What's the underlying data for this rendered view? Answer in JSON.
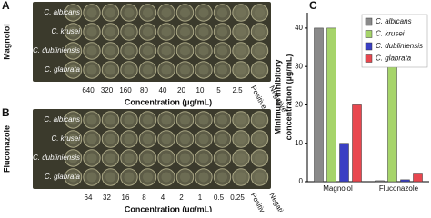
{
  "panels": [
    {
      "label": "A",
      "drug": "Magnolol",
      "strains": [
        "C. albicans",
        "C. krusei",
        "C. dubliniensis",
        "C. glabrata"
      ],
      "concentrations": [
        640,
        320,
        160,
        80,
        40,
        20,
        10,
        5,
        2.5
      ],
      "controls": [
        "Positive",
        "Negative"
      ],
      "axis_label": "Concentration (µg/mL)"
    },
    {
      "label": "B",
      "drug": "Fluconazole",
      "strains": [
        "C. albicans",
        "C. krusei",
        "C. dubliniensis",
        "C. glabrata"
      ],
      "concentrations": [
        64,
        32,
        16,
        8,
        4,
        2,
        1,
        0.5,
        0.25
      ],
      "controls": [
        "Positive",
        "Negative"
      ],
      "axis_label": "Concentration (µg/mL)"
    }
  ],
  "chart_data": {
    "type": "bar",
    "panel_label": "C",
    "ylabel": [
      "Minimum inhibitory",
      "concentration (µg/mL)"
    ],
    "categories": [
      "Magnolol",
      "Fluconazole"
    ],
    "series": [
      {
        "name": "C. albicans",
        "color": "#8a8a8a",
        "values": [
          40,
          0.25
        ]
      },
      {
        "name": "C. krusei",
        "color": "#a6d46a",
        "values": [
          40,
          32
        ]
      },
      {
        "name": "C. dubliniensis",
        "color": "#3a3fc4",
        "values": [
          10,
          0.5
        ]
      },
      {
        "name": "C. glabrata",
        "color": "#e8474f",
        "values": [
          20,
          2
        ]
      }
    ],
    "ylim": [
      0,
      44
    ],
    "yticks": [
      0,
      10,
      20,
      30,
      40
    ],
    "legend": "upper-right"
  }
}
